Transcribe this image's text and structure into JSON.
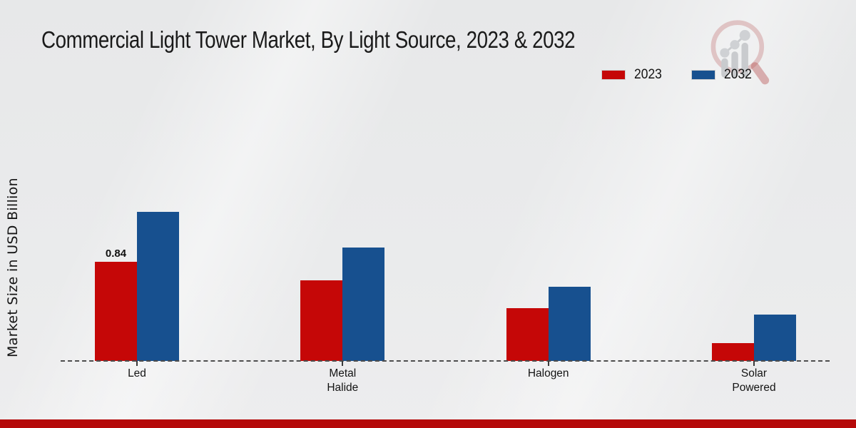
{
  "chart_data": {
    "type": "bar",
    "title": "Commercial Light Tower Market, By Light Source, 2023 & 2032",
    "ylabel": "Market Size in USD Billion",
    "xlabel": "",
    "categories": [
      "Led",
      "Metal Halide",
      "Halogen",
      "Solar Powered"
    ],
    "series": [
      {
        "name": "2023",
        "color": "#c50707",
        "values": [
          0.84,
          0.68,
          0.45,
          0.15
        ]
      },
      {
        "name": "2032",
        "color": "#17508f",
        "values": [
          1.26,
          0.96,
          0.63,
          0.39
        ]
      }
    ],
    "ylim": [
      0,
      1.4
    ],
    "grid": false,
    "legend_position": "top-right",
    "axis_style": "dashed-baseline-only",
    "shown_value_labels": [
      {
        "category": "Led",
        "series": "2023",
        "text": "0.84"
      }
    ]
  },
  "branding": {
    "logo_icon": "magnifier-growth-chart-icon",
    "bottom_band_color": "#b50909",
    "logo_ring_color": "rgba(187,92,92,0.30)",
    "logo_bar_color": "#c9cbce"
  }
}
